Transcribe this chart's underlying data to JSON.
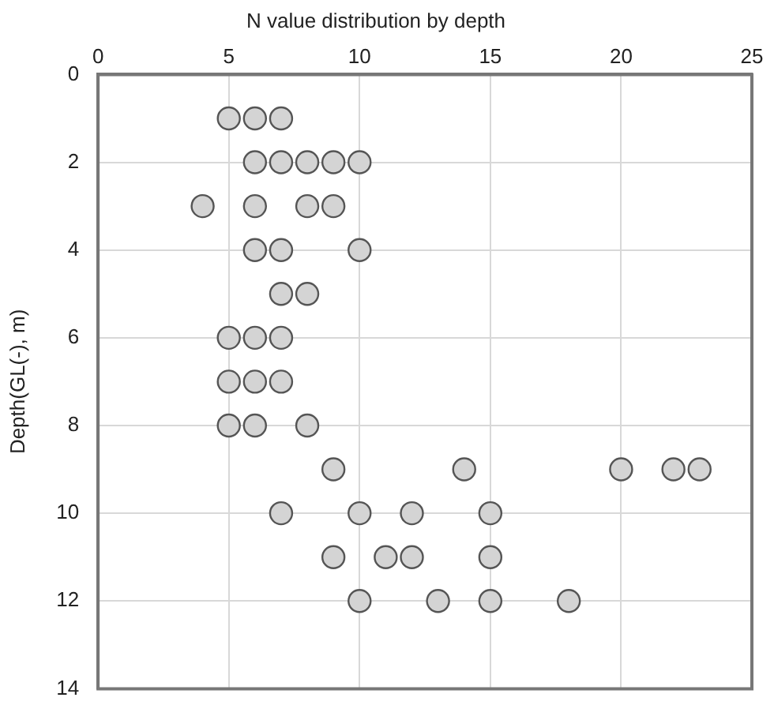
{
  "chart_data": {
    "type": "scatter",
    "title": "N value distribution by depth",
    "ylabel": "Depth(GL(-), m)",
    "x": [
      5,
      6,
      7,
      6,
      7,
      8,
      9,
      10,
      4,
      6,
      8,
      9,
      6,
      7,
      10,
      7,
      8,
      5,
      6,
      7,
      5,
      6,
      7,
      5,
      6,
      8,
      9,
      14,
      20,
      22,
      23,
      7,
      10,
      12,
      15,
      9,
      11,
      12,
      15,
      10,
      13,
      15,
      18
    ],
    "values": [
      1,
      1,
      1,
      2,
      2,
      2,
      2,
      2,
      3,
      3,
      3,
      3,
      4,
      4,
      4,
      5,
      5,
      6,
      6,
      6,
      7,
      7,
      7,
      8,
      8,
      8,
      9,
      9,
      9,
      9,
      9,
      10,
      10,
      10,
      10,
      11,
      11,
      11,
      11,
      12,
      12,
      12,
      12
    ],
    "color": "#d4d4d4",
    "marker": "circle",
    "xlim": [
      0,
      25
    ],
    "xticks": [
      0,
      5,
      10,
      15,
      20,
      25
    ],
    "ylim": [
      14,
      0
    ],
    "yticks": [
      0,
      2,
      4,
      6,
      8,
      10,
      12,
      14
    ],
    "grid": true
  }
}
